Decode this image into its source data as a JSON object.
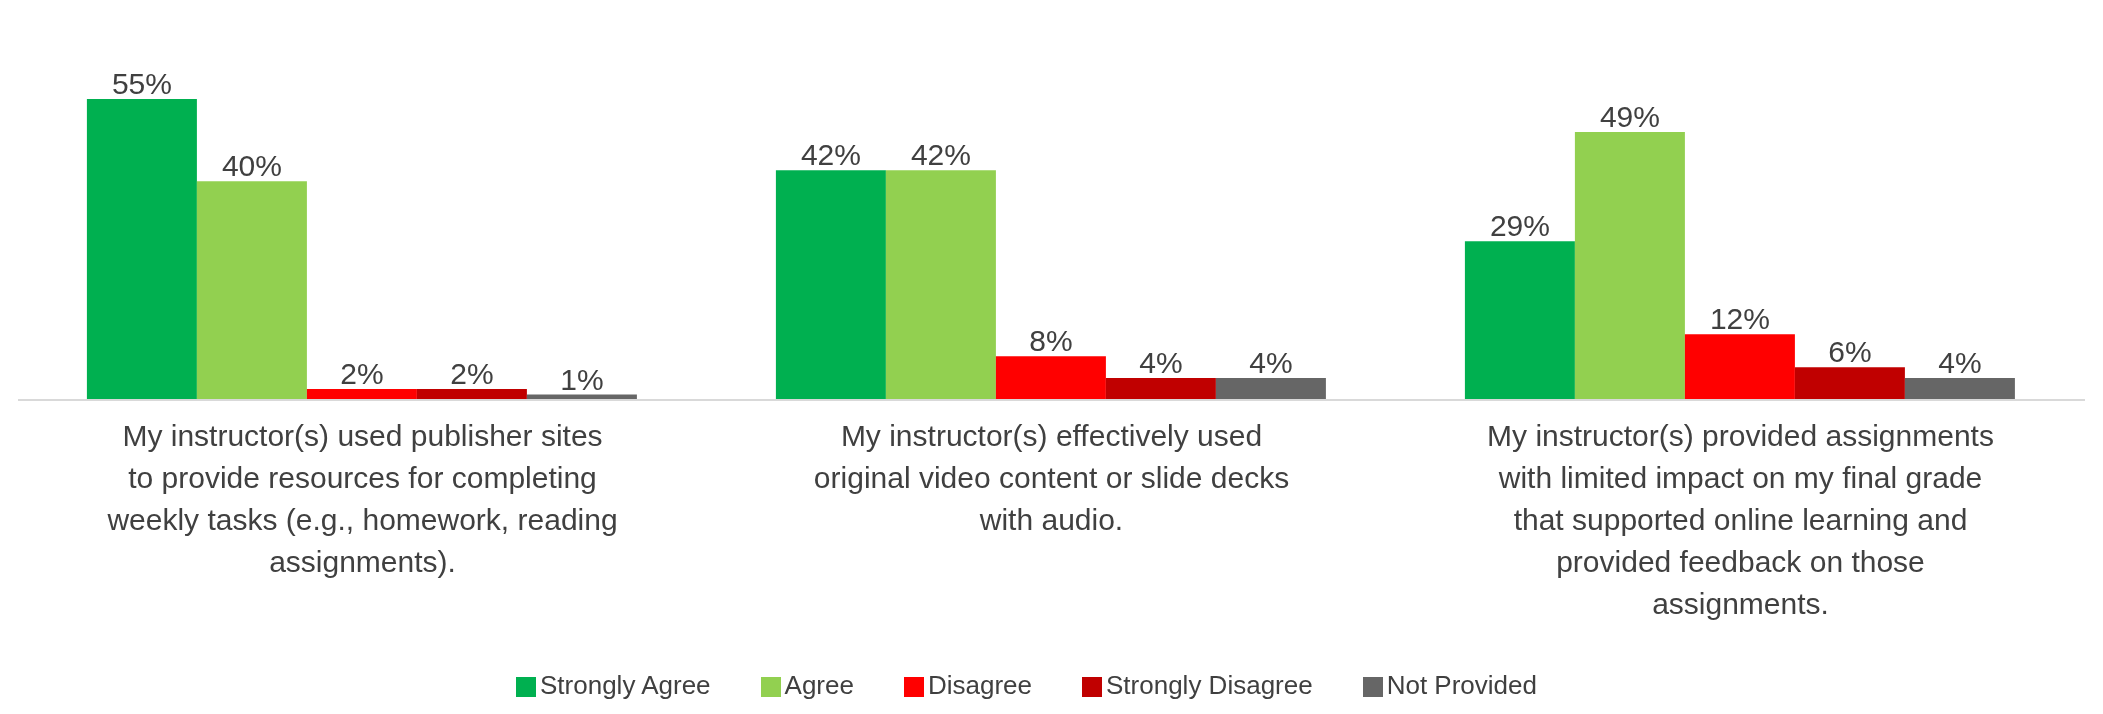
{
  "chart_data": {
    "type": "bar",
    "categories": [
      "My instructor(s) used publisher sites to provide resources for completing weekly tasks (e.g., homework, reading assignments).",
      "My instructor(s) effectively used original video content or slide decks with audio.",
      "My instructor(s) provided assignments with limited impact on my final grade that supported online learning and provided feedback on those assignments."
    ],
    "series": [
      {
        "name": "Strongly Agree",
        "color": "#00b050",
        "values": [
          55,
          42,
          29
        ],
        "value_labels": [
          "55%",
          "42%",
          "29%"
        ]
      },
      {
        "name": "Agree",
        "color": "#92d050",
        "values": [
          40,
          42,
          49
        ],
        "value_labels": [
          "40%",
          "42%",
          "49%"
        ]
      },
      {
        "name": "Disagree",
        "color": "#ff0000",
        "values": [
          2,
          8,
          12
        ],
        "value_labels": [
          "2%",
          "8%",
          "12%"
        ]
      },
      {
        "name": "Strongly Disagree",
        "color": "#c00000",
        "values": [
          2,
          4,
          6
        ],
        "value_labels": [
          "2%",
          "4%",
          "6%"
        ]
      },
      {
        "name": "Not Provided",
        "color": "#666666",
        "values": [
          1,
          4,
          4
        ],
        "value_labels": [
          "1%",
          "4%",
          "4%"
        ]
      }
    ],
    "grid": false,
    "legend": "bottom"
  }
}
